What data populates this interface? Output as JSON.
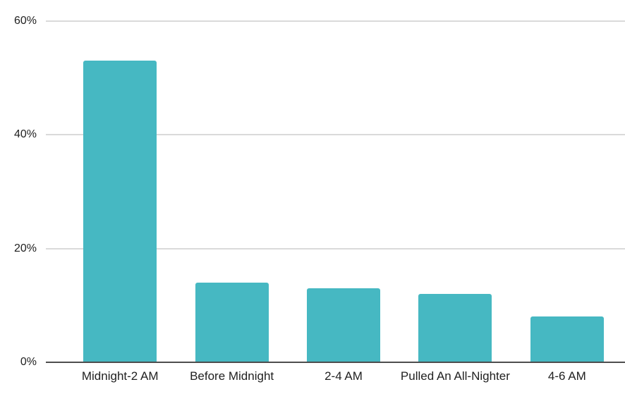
{
  "chart_data": {
    "type": "bar",
    "title": "",
    "xlabel": "",
    "ylabel": "",
    "categories": [
      "Midnight-2 AM",
      "Before Midnight",
      "2-4 AM",
      "Pulled An All-Nighter",
      "4-6 AM"
    ],
    "values": [
      53,
      14,
      13,
      12,
      8
    ],
    "ylim": [
      0,
      60
    ],
    "yticks": [
      0,
      20,
      40,
      60
    ],
    "ytick_labels": [
      "0%",
      "20%",
      "40%",
      "60%"
    ],
    "grid": true,
    "legend": false,
    "colors": {
      "bar": "#46b8c2",
      "gridline": "#dadada",
      "axis_line": "#4d4d4d",
      "tick_text": "#212121",
      "background": "#ffffff"
    }
  }
}
